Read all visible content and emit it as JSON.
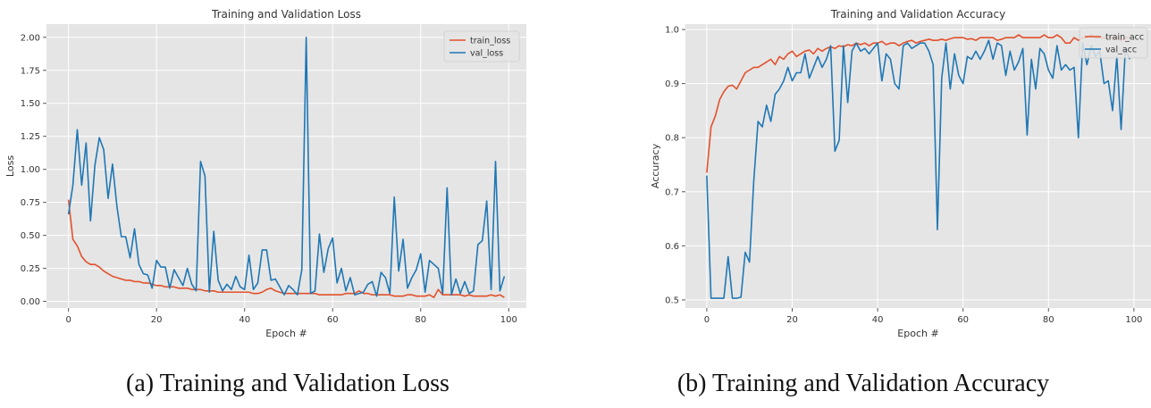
{
  "captions": {
    "a": "(a) Training and Validation Loss",
    "b": "(b) Training and Validation Accuracy"
  },
  "chart_data": [
    {
      "type": "line",
      "title": "Training and Validation Loss",
      "xlabel": "Epoch #",
      "ylabel": "Loss",
      "xlim": [
        -5,
        104
      ],
      "ylim": [
        -0.05,
        2.1
      ],
      "xticks": [
        0,
        20,
        40,
        60,
        80,
        100
      ],
      "yticks": [
        0.0,
        0.25,
        0.5,
        0.75,
        1.0,
        1.25,
        1.5,
        1.75,
        2.0
      ],
      "ytick_labels": [
        "0.00",
        "0.25",
        "0.50",
        "0.75",
        "1.00",
        "1.25",
        "1.50",
        "1.75",
        "2.00"
      ],
      "grid": true,
      "legend": "top-right",
      "x": [
        0,
        1,
        2,
        3,
        4,
        5,
        6,
        7,
        8,
        9,
        10,
        11,
        12,
        13,
        14,
        15,
        16,
        17,
        18,
        19,
        20,
        21,
        22,
        23,
        24,
        25,
        26,
        27,
        28,
        29,
        30,
        31,
        32,
        33,
        34,
        35,
        36,
        37,
        38,
        39,
        40,
        41,
        42,
        43,
        44,
        45,
        46,
        47,
        48,
        49,
        50,
        51,
        52,
        53,
        54,
        55,
        56,
        57,
        58,
        59,
        60,
        61,
        62,
        63,
        64,
        65,
        66,
        67,
        68,
        69,
        70,
        71,
        72,
        73,
        74,
        75,
        76,
        77,
        78,
        79,
        80,
        81,
        82,
        83,
        84,
        85,
        86,
        87,
        88,
        89,
        90,
        91,
        92,
        93,
        94,
        95,
        96,
        97,
        98,
        99
      ],
      "series": [
        {
          "name": "train_loss",
          "color": "#e2512c",
          "values": [
            0.77,
            0.47,
            0.42,
            0.34,
            0.3,
            0.28,
            0.28,
            0.26,
            0.23,
            0.21,
            0.19,
            0.18,
            0.17,
            0.16,
            0.16,
            0.15,
            0.15,
            0.14,
            0.14,
            0.13,
            0.12,
            0.12,
            0.11,
            0.11,
            0.11,
            0.1,
            0.1,
            0.1,
            0.09,
            0.09,
            0.09,
            0.08,
            0.08,
            0.08,
            0.07,
            0.07,
            0.07,
            0.07,
            0.07,
            0.07,
            0.07,
            0.07,
            0.06,
            0.06,
            0.07,
            0.09,
            0.1,
            0.08,
            0.07,
            0.06,
            0.06,
            0.06,
            0.06,
            0.06,
            0.06,
            0.06,
            0.06,
            0.05,
            0.05,
            0.05,
            0.05,
            0.05,
            0.05,
            0.06,
            0.06,
            0.06,
            0.08,
            0.06,
            0.06,
            0.05,
            0.05,
            0.05,
            0.05,
            0.05,
            0.04,
            0.04,
            0.04,
            0.05,
            0.05,
            0.04,
            0.04,
            0.04,
            0.05,
            0.03,
            0.09,
            0.05,
            0.05,
            0.05,
            0.05,
            0.05,
            0.04,
            0.05,
            0.04,
            0.04,
            0.04,
            0.04,
            0.05,
            0.04,
            0.05,
            0.03
          ]
        },
        {
          "name": "val_loss",
          "color": "#1f77b4",
          "values": [
            0.66,
            0.88,
            1.3,
            0.88,
            1.2,
            0.61,
            1.03,
            1.24,
            1.15,
            0.78,
            1.04,
            0.72,
            0.49,
            0.49,
            0.33,
            0.55,
            0.28,
            0.21,
            0.2,
            0.1,
            0.31,
            0.26,
            0.26,
            0.1,
            0.24,
            0.18,
            0.12,
            0.25,
            0.13,
            0.08,
            1.06,
            0.95,
            0.07,
            0.53,
            0.16,
            0.08,
            0.13,
            0.09,
            0.19,
            0.11,
            0.09,
            0.35,
            0.09,
            0.14,
            0.39,
            0.39,
            0.16,
            0.17,
            0.11,
            0.05,
            0.12,
            0.09,
            0.05,
            0.24,
            2.0,
            0.06,
            0.08,
            0.51,
            0.22,
            0.4,
            0.48,
            0.14,
            0.25,
            0.08,
            0.18,
            0.05,
            0.06,
            0.07,
            0.13,
            0.15,
            0.04,
            0.22,
            0.18,
            0.06,
            0.79,
            0.23,
            0.47,
            0.1,
            0.18,
            0.24,
            0.36,
            0.07,
            0.31,
            0.28,
            0.25,
            0.06,
            0.86,
            0.05,
            0.17,
            0.06,
            0.15,
            0.06,
            0.08,
            0.43,
            0.46,
            0.76,
            0.09,
            1.06,
            0.08,
            0.19
          ]
        }
      ]
    },
    {
      "type": "line",
      "title": "Training and Validation Accuracy",
      "xlabel": "Epoch #",
      "ylabel": "Accuracy",
      "xlim": [
        -5,
        104
      ],
      "ylim": [
        0.485,
        1.01
      ],
      "xticks": [
        0,
        20,
        40,
        60,
        80,
        100
      ],
      "yticks": [
        0.5,
        0.6,
        0.7,
        0.8,
        0.9,
        1.0
      ],
      "ytick_labels": [
        "0.5",
        "0.6",
        "0.7",
        "0.8",
        "0.9",
        "1.0"
      ],
      "grid": true,
      "legend": "top-right",
      "x": [
        0,
        1,
        2,
        3,
        4,
        5,
        6,
        7,
        8,
        9,
        10,
        11,
        12,
        13,
        14,
        15,
        16,
        17,
        18,
        19,
        20,
        21,
        22,
        23,
        24,
        25,
        26,
        27,
        28,
        29,
        30,
        31,
        32,
        33,
        34,
        35,
        36,
        37,
        38,
        39,
        40,
        41,
        42,
        43,
        44,
        45,
        46,
        47,
        48,
        49,
        50,
        51,
        52,
        53,
        54,
        55,
        56,
        57,
        58,
        59,
        60,
        61,
        62,
        63,
        64,
        65,
        66,
        67,
        68,
        69,
        70,
        71,
        72,
        73,
        74,
        75,
        76,
        77,
        78,
        79,
        80,
        81,
        82,
        83,
        84,
        85,
        86,
        87,
        88,
        89,
        90,
        91,
        92,
        93,
        94,
        95,
        96,
        97,
        98,
        99
      ],
      "series": [
        {
          "name": "train_acc",
          "color": "#e2512c",
          "values": [
            0.735,
            0.82,
            0.84,
            0.87,
            0.885,
            0.895,
            0.897,
            0.89,
            0.905,
            0.92,
            0.925,
            0.93,
            0.93,
            0.935,
            0.94,
            0.945,
            0.935,
            0.95,
            0.945,
            0.955,
            0.96,
            0.95,
            0.955,
            0.96,
            0.962,
            0.955,
            0.965,
            0.96,
            0.965,
            0.968,
            0.965,
            0.97,
            0.968,
            0.972,
            0.97,
            0.975,
            0.972,
            0.975,
            0.97,
            0.975,
            0.975,
            0.978,
            0.972,
            0.975,
            0.975,
            0.97,
            0.975,
            0.978,
            0.98,
            0.975,
            0.978,
            0.98,
            0.982,
            0.98,
            0.98,
            0.982,
            0.98,
            0.983,
            0.985,
            0.985,
            0.985,
            0.982,
            0.983,
            0.98,
            0.985,
            0.985,
            0.985,
            0.985,
            0.98,
            0.982,
            0.985,
            0.985,
            0.985,
            0.99,
            0.985,
            0.985,
            0.985,
            0.985,
            0.985,
            0.99,
            0.985,
            0.985,
            0.99,
            0.985,
            0.975,
            0.975,
            0.985,
            0.98,
            0.985,
            0.985,
            0.99,
            0.985,
            0.985,
            0.985,
            0.985,
            0.985,
            0.985,
            0.98,
            0.985,
            0.985
          ]
        },
        {
          "name": "val_acc",
          "color": "#1f77b4",
          "values": [
            0.73,
            0.503,
            0.503,
            0.503,
            0.503,
            0.58,
            0.503,
            0.503,
            0.505,
            0.588,
            0.57,
            0.72,
            0.83,
            0.82,
            0.86,
            0.83,
            0.88,
            0.89,
            0.905,
            0.93,
            0.905,
            0.92,
            0.92,
            0.955,
            0.91,
            0.93,
            0.95,
            0.93,
            0.945,
            0.97,
            0.775,
            0.795,
            0.97,
            0.865,
            0.96,
            0.975,
            0.96,
            0.965,
            0.955,
            0.965,
            0.975,
            0.905,
            0.955,
            0.945,
            0.9,
            0.89,
            0.97,
            0.975,
            0.965,
            0.97,
            0.975,
            0.975,
            0.96,
            0.935,
            0.63,
            0.91,
            0.975,
            0.89,
            0.955,
            0.915,
            0.9,
            0.95,
            0.945,
            0.96,
            0.945,
            0.96,
            0.98,
            0.945,
            0.975,
            0.97,
            0.915,
            0.96,
            0.925,
            0.94,
            0.965,
            0.805,
            0.945,
            0.89,
            0.965,
            0.955,
            0.925,
            0.91,
            0.97,
            0.925,
            0.935,
            0.925,
            0.93,
            0.8,
            0.975,
            0.935,
            0.97,
            0.95,
            0.96,
            0.9,
            0.905,
            0.85,
            0.95,
            0.815,
            0.965,
            0.945
          ]
        }
      ]
    }
  ]
}
